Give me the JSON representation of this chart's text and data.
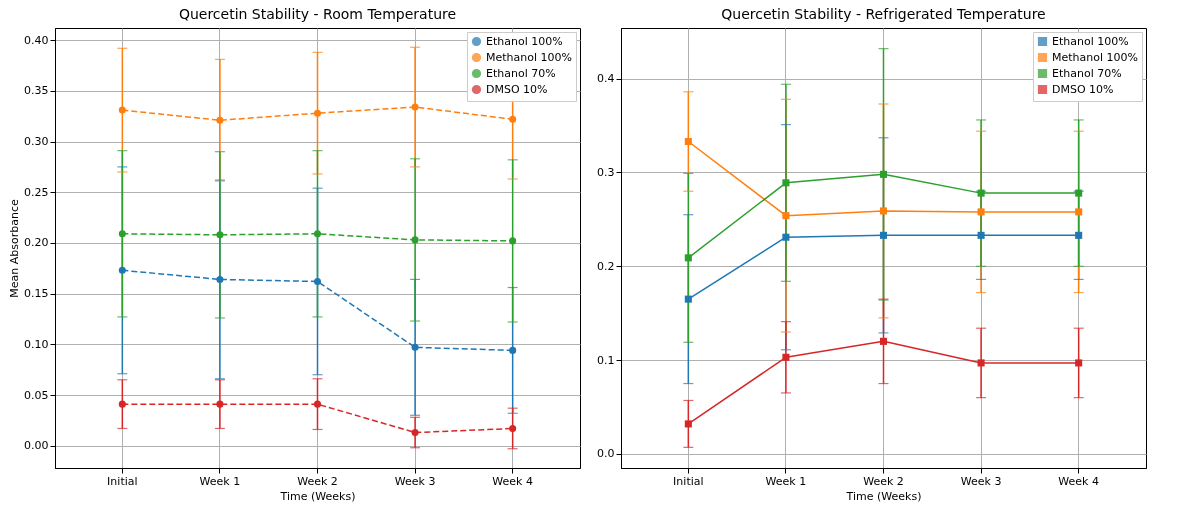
{
  "chart_data": [
    {
      "type": "line",
      "title": "Quercetin Stability - Room Temperature",
      "xlabel": "Time (Weeks)",
      "ylabel": "Mean Absorbance",
      "categories": [
        "Initial",
        "Week 1",
        "Week 2",
        "Week 3",
        "Week 4"
      ],
      "ylim": [
        -0.022,
        0.412
      ],
      "yticks": [
        {
          "value": 0,
          "label": "0.00"
        },
        {
          "value": 0.05,
          "label": "0.05"
        },
        {
          "value": 0.1,
          "label": "0.10"
        },
        {
          "value": 0.15,
          "label": "0.15"
        },
        {
          "value": 0.2,
          "label": "0.20"
        },
        {
          "value": 0.25,
          "label": "0.25"
        },
        {
          "value": 0.3,
          "label": "0.30"
        },
        {
          "value": 0.35,
          "label": "0.35"
        },
        {
          "value": 0.4,
          "label": "0.40"
        }
      ],
      "grid": true,
      "legend": "top right",
      "marker": "circle",
      "line_style": "dashed",
      "series": [
        {
          "name": "Ethanol 100%",
          "color": "#1f77b4",
          "values": [
            0.173,
            0.164,
            0.162,
            0.097,
            0.094
          ],
          "errors": [
            0.102,
            0.098,
            0.092,
            0.067,
            0.062
          ]
        },
        {
          "name": "Methanol 100%",
          "color": "#ff7f0e",
          "values": [
            0.331,
            0.321,
            0.328,
            0.334,
            0.322
          ],
          "errors": [
            0.061,
            0.06,
            0.06,
            0.059,
            0.059
          ]
        },
        {
          "name": "Ethanol 70%",
          "color": "#2ca02c",
          "values": [
            0.209,
            0.208,
            0.209,
            0.203,
            0.202
          ],
          "errors": [
            0.082,
            0.082,
            0.082,
            0.08,
            0.08
          ]
        },
        {
          "name": "DMSO 10%",
          "color": "#d62728",
          "values": [
            0.041,
            0.041,
            0.041,
            0.013,
            0.017
          ],
          "errors": [
            0.024,
            0.024,
            0.025,
            0.015,
            0.02
          ]
        }
      ]
    },
    {
      "type": "line",
      "title": "Quercetin Stability - Refrigerated Temperature",
      "xlabel": "Time (Weeks)",
      "categories": [
        "Initial",
        "Week 1",
        "Week 2",
        "Week 3",
        "Week 4"
      ],
      "ylim": [
        -0.015,
        0.454
      ],
      "yticks": [
        {
          "value": 0,
          "label": "0.0"
        },
        {
          "value": 0.1,
          "label": "0.1"
        },
        {
          "value": 0.2,
          "label": "0.2"
        },
        {
          "value": 0.3,
          "label": "0.3"
        },
        {
          "value": 0.4,
          "label": "0.4"
        }
      ],
      "grid": true,
      "legend": "top right",
      "marker": "square",
      "line_style": "solid",
      "series": [
        {
          "name": "Ethanol 100%",
          "color": "#1f77b4",
          "values": [
            0.165,
            0.231,
            0.233,
            0.233,
            0.233
          ],
          "errors": [
            0.09,
            0.12,
            0.104,
            0.047,
            0.047
          ]
        },
        {
          "name": "Methanol 100%",
          "color": "#ff7f0e",
          "values": [
            0.333,
            0.254,
            0.259,
            0.258,
            0.258
          ],
          "errors": [
            0.053,
            0.124,
            0.114,
            0.086,
            0.086
          ]
        },
        {
          "name": "Ethanol 70%",
          "color": "#2ca02c",
          "values": [
            0.209,
            0.289,
            0.298,
            0.278,
            0.278
          ],
          "errors": [
            0.09,
            0.105,
            0.134,
            0.078,
            0.078
          ]
        },
        {
          "name": "DMSO 10%",
          "color": "#d62728",
          "values": [
            0.032,
            0.103,
            0.12,
            0.097,
            0.097
          ],
          "errors": [
            0.025,
            0.038,
            0.045,
            0.037,
            0.037
          ]
        }
      ]
    }
  ]
}
